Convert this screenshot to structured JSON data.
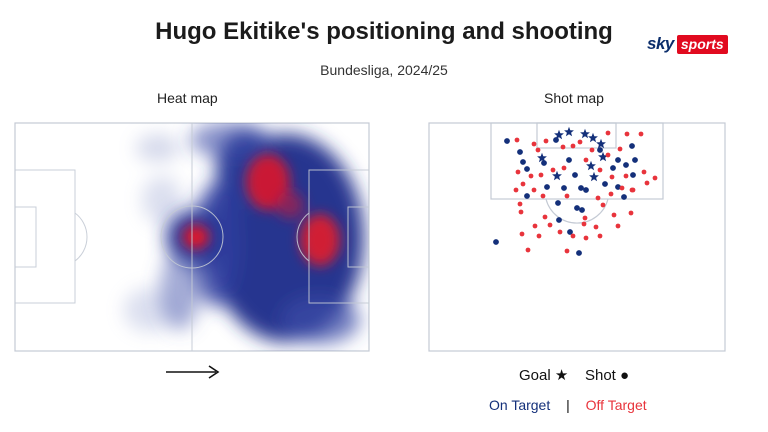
{
  "header": {
    "title": "Hugo Ekitike's positioning and shooting",
    "subtitle": "Bundesliga, 2024/25",
    "logo_sky": "sky",
    "logo_sports": "sports"
  },
  "heat_map": {
    "label": "Heat map",
    "direction": "left-to-right"
  },
  "shot_map": {
    "label": "Shot map",
    "legend": {
      "goal_label": "Goal",
      "goal_symbol": "★",
      "shot_label": "Shot",
      "shot_symbol": "●",
      "on_target": "On Target",
      "separator": "|",
      "off_target": "Off Target"
    }
  },
  "colors": {
    "on_target": "#14307a",
    "off_target": "#e8343c",
    "pitch_lines": "#c4cad4",
    "heat_low": "#2c3e9e",
    "heat_high": "#e3162c"
  }
}
